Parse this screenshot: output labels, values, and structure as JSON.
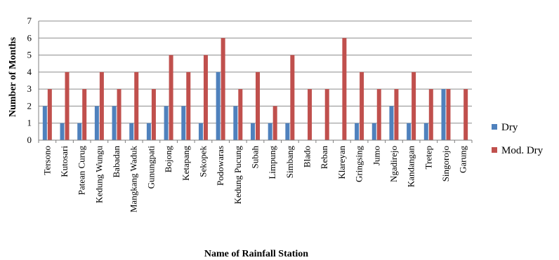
{
  "chart_data": {
    "type": "bar",
    "xlabel": "Name of Rainfall Station",
    "ylabel": "Number of Months",
    "ylim": [
      0,
      7
    ],
    "yticks": [
      "0",
      "1",
      "2",
      "3",
      "4",
      "5",
      "6",
      "7"
    ],
    "grid": true,
    "legend_position": "right",
    "categories": [
      "Tersono",
      "Kutosari",
      "Patean Curug",
      "Kedung Wungu",
      "Babadan",
      "Mangkang Waduk",
      "Gunungpati",
      "Bojong",
      "Ketapang",
      "Sekopek",
      "Podowaras",
      "Kedung Pucung",
      "Subah",
      "Limpung",
      "Simbang",
      "Blado",
      "Reban",
      "Klareyan",
      "Gringsing",
      "Jumo",
      "Ngadirejo",
      "Kandangan",
      "Tretep",
      "Singorojo",
      "Garung"
    ],
    "series": [
      {
        "name": "Dry",
        "color": "#4F81BD",
        "values": [
          2,
          1,
          1,
          2,
          2,
          1,
          1,
          2,
          2,
          1,
          4,
          2,
          1,
          1,
          1,
          0,
          0,
          0,
          1,
          1,
          2,
          1,
          1,
          3,
          0
        ]
      },
      {
        "name": "Mod. Dry",
        "color": "#C0504D",
        "values": [
          3,
          4,
          3,
          4,
          3,
          4,
          3,
          5,
          4,
          5,
          6,
          3,
          4,
          2,
          5,
          3,
          3,
          6,
          4,
          3,
          3,
          4,
          3,
          3,
          3
        ]
      }
    ]
  }
}
